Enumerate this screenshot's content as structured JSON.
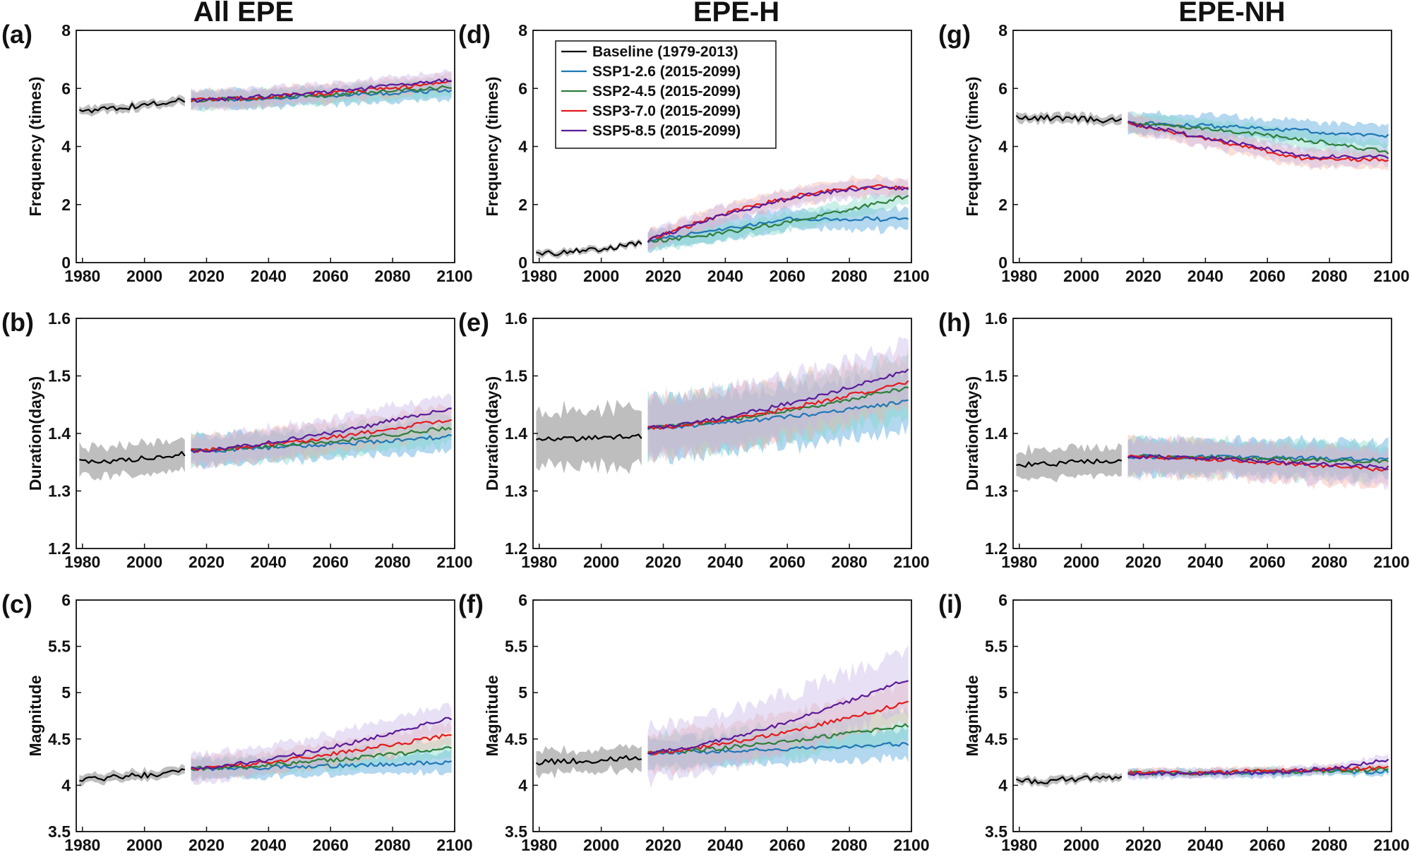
{
  "colors": {
    "baseline": "#000000",
    "ssp126": "#1f77b4",
    "ssp245": "#2e7d3a",
    "ssp370": "#e41a1c",
    "ssp585": "#5b1a9a",
    "band_baseline": "#a8a8a8",
    "band_ssp126": "#4aa3d8",
    "band_ssp245": "#7fd9c9",
    "band_ssp370": "#f2b5a5",
    "band_ssp585": "#c7b5e8"
  },
  "columns": [
    "All EPE",
    "EPE-H",
    "EPE-NH"
  ],
  "legend": {
    "entries": [
      {
        "key": "baseline",
        "label": "Baseline (1979-2013)"
      },
      {
        "key": "ssp126",
        "label": "SSP1-2.6 (2015-2099)"
      },
      {
        "key": "ssp245",
        "label": "SSP2-4.5 (2015-2099)"
      },
      {
        "key": "ssp370",
        "label": "SSP3-7.0 (2015-2099)"
      },
      {
        "key": "ssp585",
        "label": "SSP5-8.5 (2015-2099)"
      }
    ]
  },
  "chart_data": [
    {
      "id": "a",
      "panel_label": "(a)",
      "column": "All EPE",
      "type": "line",
      "ylabel": "Frequency (times)",
      "xlim": [
        1978,
        2100
      ],
      "ylim": [
        0,
        8
      ],
      "xticks": [
        1980,
        2000,
        2020,
        2040,
        2060,
        2080,
        2100
      ],
      "yticks": [
        0,
        2,
        4,
        6,
        8
      ],
      "baseline": {
        "x": [
          1979,
          2013
        ],
        "y": [
          5.25,
          5.6
        ],
        "band": 0.15
      },
      "series": [
        {
          "name": "SSP1-2.6 (2015-2099)",
          "key": "ssp126",
          "x": [
            2015,
            2099
          ],
          "y": [
            5.6,
            5.95
          ],
          "band": 0.3
        },
        {
          "name": "SSP2-4.5 (2015-2099)",
          "key": "ssp245",
          "x": [
            2015,
            2099
          ],
          "y": [
            5.6,
            6.05
          ],
          "band": 0.3
        },
        {
          "name": "SSP3-7.0 (2015-2099)",
          "key": "ssp370",
          "x": [
            2015,
            2099
          ],
          "y": [
            5.6,
            6.2
          ],
          "band": 0.3
        },
        {
          "name": "SSP5-8.5 (2015-2099)",
          "key": "ssp585",
          "x": [
            2015,
            2099
          ],
          "y": [
            5.6,
            6.3
          ],
          "band": 0.3
        }
      ]
    },
    {
      "id": "b",
      "panel_label": "(b)",
      "column": "All EPE",
      "type": "line",
      "ylabel": "Duration(days)",
      "xlim": [
        1978,
        2100
      ],
      "ylim": [
        1.2,
        1.6
      ],
      "xticks": [
        1980,
        2000,
        2020,
        2040,
        2060,
        2080,
        2100
      ],
      "yticks": [
        1.2,
        1.3,
        1.4,
        1.5,
        1.6
      ],
      "baseline": {
        "x": [
          1979,
          2013
        ],
        "y": [
          1.35,
          1.365
        ],
        "band": 0.025
      },
      "series": [
        {
          "name": "SSP1-2.6 (2015-2099)",
          "key": "ssp126",
          "x": [
            2015,
            2099
          ],
          "y": [
            1.37,
            1.395
          ],
          "band": 0.025
        },
        {
          "name": "SSP2-4.5 (2015-2099)",
          "key": "ssp245",
          "x": [
            2015,
            2099
          ],
          "y": [
            1.37,
            1.41
          ],
          "band": 0.025
        },
        {
          "name": "SSP3-7.0 (2015-2099)",
          "key": "ssp370",
          "x": [
            2015,
            2099
          ],
          "y": [
            1.37,
            1.425
          ],
          "band": 0.025
        },
        {
          "name": "SSP5-8.5 (2015-2099)",
          "key": "ssp585",
          "x": [
            2015,
            2099
          ],
          "y": [
            1.37,
            1.445
          ],
          "band": 0.025
        }
      ]
    },
    {
      "id": "c",
      "panel_label": "(c)",
      "column": "All EPE",
      "type": "line",
      "ylabel": "Magnitude",
      "xlim": [
        1978,
        2100
      ],
      "ylim": [
        3.5,
        6
      ],
      "xticks": [
        1980,
        2000,
        2020,
        2040,
        2060,
        2080,
        2100
      ],
      "yticks": [
        3.5,
        4,
        4.5,
        5,
        5.5,
        6
      ],
      "baseline": {
        "x": [
          1979,
          2013
        ],
        "y": [
          4.07,
          4.15
        ],
        "band": 0.05
      },
      "series": [
        {
          "name": "SSP1-2.6 (2015-2099)",
          "key": "ssp126",
          "x": [
            2015,
            2099
          ],
          "y": [
            4.18,
            4.25
          ],
          "band": 0.1
        },
        {
          "name": "SSP2-4.5 (2015-2099)",
          "key": "ssp245",
          "x": [
            2015,
            2099
          ],
          "y": [
            4.18,
            4.4
          ],
          "band": 0.1
        },
        {
          "name": "SSP3-7.0 (2015-2099)",
          "key": "ssp370",
          "x": [
            2015,
            2099
          ],
          "y": [
            4.18,
            4.55
          ],
          "band": 0.12
        },
        {
          "name": "SSP5-8.5 (2015-2099)",
          "key": "ssp585",
          "x": [
            2015,
            2099
          ],
          "y": [
            4.18,
            4.73
          ],
          "band": 0.15
        }
      ]
    },
    {
      "id": "d",
      "panel_label": "(d)",
      "column": "EPE-H",
      "type": "line",
      "ylabel": "Frequency (times)",
      "xlim": [
        1978,
        2100
      ],
      "ylim": [
        0,
        8
      ],
      "xticks": [
        1980,
        2000,
        2020,
        2040,
        2060,
        2080,
        2100
      ],
      "yticks": [
        0,
        2,
        4,
        6,
        8
      ],
      "baseline": {
        "x": [
          1979,
          2013
        ],
        "y": [
          0.3,
          0.65
        ],
        "band": 0.1
      },
      "series": [
        {
          "name": "SSP1-2.6 (2015-2099)",
          "key": "ssp126",
          "x": [
            2015,
            2099
          ],
          "y": [
            0.75,
            1.5
          ],
          "band": 0.35,
          "shape": "sat"
        },
        {
          "name": "SSP2-4.5 (2015-2099)",
          "key": "ssp245",
          "x": [
            2015,
            2099
          ],
          "y": [
            0.75,
            2.3
          ],
          "band": 0.3
        },
        {
          "name": "SSP3-7.0 (2015-2099)",
          "key": "ssp370",
          "x": [
            2015,
            2099
          ],
          "y": [
            0.75,
            2.6
          ],
          "band": 0.3,
          "shape": "sat2"
        },
        {
          "name": "SSP5-8.5 (2015-2099)",
          "key": "ssp585",
          "x": [
            2015,
            2099
          ],
          "y": [
            0.75,
            2.55
          ],
          "band": 0.3,
          "shape": "sat2"
        }
      ]
    },
    {
      "id": "e",
      "panel_label": "(e)",
      "column": "EPE-H",
      "type": "line",
      "ylabel": "Duration(days)",
      "xlim": [
        1978,
        2100
      ],
      "ylim": [
        1.2,
        1.6
      ],
      "xticks": [
        1980,
        2000,
        2020,
        2040,
        2060,
        2080,
        2100
      ],
      "yticks": [
        1.2,
        1.3,
        1.4,
        1.5,
        1.6
      ],
      "baseline": {
        "x": [
          1979,
          2013
        ],
        "y": [
          1.39,
          1.395
        ],
        "band": 0.05
      },
      "series": [
        {
          "name": "SSP1-2.6 (2015-2099)",
          "key": "ssp126",
          "x": [
            2015,
            2099
          ],
          "y": [
            1.41,
            1.455
          ],
          "band": 0.05
        },
        {
          "name": "SSP2-4.5 (2015-2099)",
          "key": "ssp245",
          "x": [
            2015,
            2099
          ],
          "y": [
            1.41,
            1.48
          ],
          "band": 0.05
        },
        {
          "name": "SSP3-7.0 (2015-2099)",
          "key": "ssp370",
          "x": [
            2015,
            2099
          ],
          "y": [
            1.41,
            1.49
          ],
          "band": 0.05
        },
        {
          "name": "SSP5-8.5 (2015-2099)",
          "key": "ssp585",
          "x": [
            2015,
            2099
          ],
          "y": [
            1.41,
            1.51
          ],
          "band": 0.05
        }
      ]
    },
    {
      "id": "f",
      "panel_label": "(f)",
      "column": "EPE-H",
      "type": "line",
      "ylabel": "Magnitude",
      "xlim": [
        1978,
        2100
      ],
      "ylim": [
        3.5,
        6
      ],
      "xticks": [
        1980,
        2000,
        2020,
        2040,
        2060,
        2080,
        2100
      ],
      "yticks": [
        3.5,
        4,
        4.5,
        5,
        5.5,
        6
      ],
      "baseline": {
        "x": [
          1979,
          2013
        ],
        "y": [
          4.25,
          4.3
        ],
        "band": 0.12
      },
      "series": [
        {
          "name": "SSP1-2.6 (2015-2099)",
          "key": "ssp126",
          "x": [
            2015,
            2099
          ],
          "y": [
            4.35,
            4.45
          ],
          "band": 0.15
        },
        {
          "name": "SSP2-4.5 (2015-2099)",
          "key": "ssp245",
          "x": [
            2015,
            2099
          ],
          "y": [
            4.35,
            4.65
          ],
          "band": 0.18
        },
        {
          "name": "SSP3-7.0 (2015-2099)",
          "key": "ssp370",
          "x": [
            2015,
            2099
          ],
          "y": [
            4.35,
            4.9
          ],
          "band": 0.2
        },
        {
          "name": "SSP5-8.5 (2015-2099)",
          "key": "ssp585",
          "x": [
            2015,
            2099
          ],
          "y": [
            4.35,
            5.15
          ],
          "band": 0.3
        }
      ]
    },
    {
      "id": "g",
      "panel_label": "(g)",
      "column": "EPE-NH",
      "type": "line",
      "ylabel": "Frequency (times)",
      "xlim": [
        1978,
        2100
      ],
      "ylim": [
        0,
        8
      ],
      "xticks": [
        1980,
        2000,
        2020,
        2040,
        2060,
        2080,
        2100
      ],
      "yticks": [
        0,
        2,
        4,
        6,
        8
      ],
      "baseline": {
        "x": [
          1979,
          2013
        ],
        "y": [
          5.0,
          4.9
        ],
        "band": 0.15
      },
      "series": [
        {
          "name": "SSP1-2.6 (2015-2099)",
          "key": "ssp126",
          "x": [
            2015,
            2099
          ],
          "y": [
            4.8,
            4.35
          ],
          "band": 0.35
        },
        {
          "name": "SSP2-4.5 (2015-2099)",
          "key": "ssp245",
          "x": [
            2015,
            2099
          ],
          "y": [
            4.8,
            3.8
          ],
          "band": 0.3
        },
        {
          "name": "SSP3-7.0 (2015-2099)",
          "key": "ssp370",
          "x": [
            2015,
            2099
          ],
          "y": [
            4.8,
            3.55
          ],
          "band": 0.3,
          "shape": "dip"
        },
        {
          "name": "SSP5-8.5 (2015-2099)",
          "key": "ssp585",
          "x": [
            2015,
            2099
          ],
          "y": [
            4.8,
            3.65
          ],
          "band": 0.3,
          "shape": "dip"
        }
      ]
    },
    {
      "id": "h",
      "panel_label": "(h)",
      "column": "EPE-NH",
      "type": "line",
      "ylabel": "Duration(days)",
      "xlim": [
        1978,
        2100
      ],
      "ylim": [
        1.2,
        1.6
      ],
      "xticks": [
        1980,
        2000,
        2020,
        2040,
        2060,
        2080,
        2100
      ],
      "yticks": [
        1.2,
        1.3,
        1.4,
        1.5,
        1.6
      ],
      "baseline": {
        "x": [
          1979,
          2013
        ],
        "y": [
          1.345,
          1.355
        ],
        "band": 0.025
      },
      "series": [
        {
          "name": "SSP1-2.6 (2015-2099)",
          "key": "ssp126",
          "x": [
            2015,
            2099
          ],
          "y": [
            1.36,
            1.355
          ],
          "band": 0.03
        },
        {
          "name": "SSP2-4.5 (2015-2099)",
          "key": "ssp245",
          "x": [
            2015,
            2099
          ],
          "y": [
            1.36,
            1.35
          ],
          "band": 0.03
        },
        {
          "name": "SSP3-7.0 (2015-2099)",
          "key": "ssp370",
          "x": [
            2015,
            2099
          ],
          "y": [
            1.36,
            1.335
          ],
          "band": 0.03
        },
        {
          "name": "SSP5-8.5 (2015-2099)",
          "key": "ssp585",
          "x": [
            2015,
            2099
          ],
          "y": [
            1.36,
            1.34
          ],
          "band": 0.03
        }
      ]
    },
    {
      "id": "i",
      "panel_label": "(i)",
      "column": "EPE-NH",
      "type": "line",
      "ylabel": "Magnitude",
      "xlim": [
        1978,
        2100
      ],
      "ylim": [
        3.5,
        6
      ],
      "xticks": [
        1980,
        2000,
        2020,
        2040,
        2060,
        2080,
        2100
      ],
      "yticks": [
        3.5,
        4,
        4.5,
        5,
        5.5,
        6
      ],
      "baseline": {
        "x": [
          1979,
          2013
        ],
        "y": [
          4.04,
          4.1
        ],
        "band": 0.04
      },
      "series": [
        {
          "name": "SSP1-2.6 (2015-2099)",
          "key": "ssp126",
          "x": [
            2015,
            2099
          ],
          "y": [
            4.13,
            4.15
          ],
          "band": 0.04
        },
        {
          "name": "SSP2-4.5 (2015-2099)",
          "key": "ssp245",
          "x": [
            2015,
            2099
          ],
          "y": [
            4.13,
            4.17
          ],
          "band": 0.04
        },
        {
          "name": "SSP3-7.0 (2015-2099)",
          "key": "ssp370",
          "x": [
            2015,
            2099
          ],
          "y": [
            4.13,
            4.19
          ],
          "band": 0.04
        },
        {
          "name": "SSP5-8.5 (2015-2099)",
          "key": "ssp585",
          "x": [
            2015,
            2099
          ],
          "y": [
            4.13,
            4.28
          ],
          "band": 0.05,
          "shape": "late"
        }
      ]
    }
  ]
}
